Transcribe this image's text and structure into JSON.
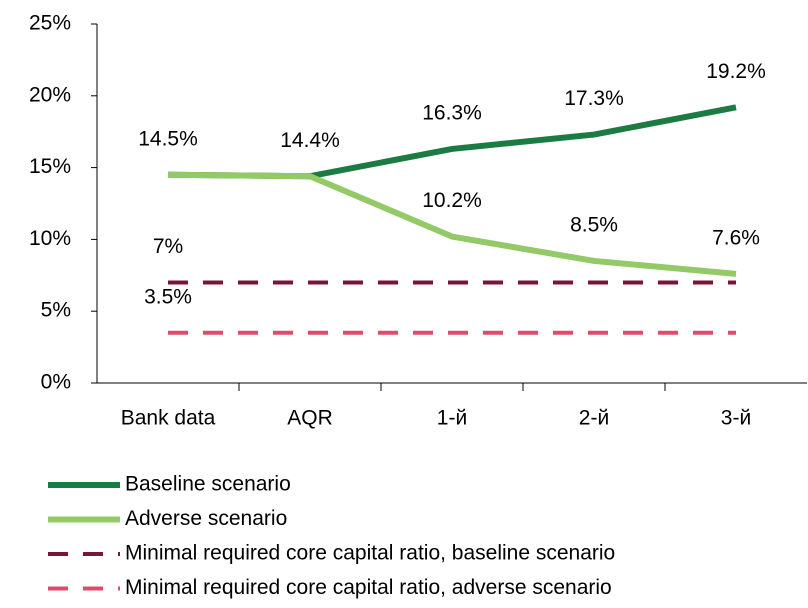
{
  "chart_data": {
    "type": "line",
    "categories": [
      "Bank data",
      "AQR",
      "1-й",
      "2-й",
      "3-й"
    ],
    "series": [
      {
        "name": "Baseline scenario",
        "color": "#1b7b43",
        "dash": false,
        "values": [
          14.5,
          14.4,
          16.3,
          17.3,
          19.2
        ],
        "value_labels": [
          "14.5%",
          "14.4%",
          "16.3%",
          "17.3%",
          "19.2%"
        ]
      },
      {
        "name": "Adverse scenario",
        "color": "#93c966",
        "dash": false,
        "values": [
          14.5,
          14.4,
          10.2,
          8.5,
          7.6
        ],
        "value_labels": [
          null,
          null,
          "10.2%",
          "8.5%",
          "7.6%"
        ]
      },
      {
        "name": "Minimal required core capital ratio, baseline scenario",
        "color": "#7b1438",
        "dash": true,
        "values": [
          7,
          7,
          7,
          7,
          7
        ],
        "value_labels": [
          "7%",
          null,
          null,
          null,
          null
        ]
      },
      {
        "name": "Minimal required core capital ratio, adverse scenario",
        "color": "#d94f6b",
        "dash": true,
        "values": [
          3.5,
          3.5,
          3.5,
          3.5,
          3.5
        ],
        "value_labels": [
          "3.5%",
          null,
          null,
          null,
          null
        ]
      }
    ],
    "ylim": [
      0,
      25
    ],
    "yticks": [
      {
        "value": 0,
        "label": "0%"
      },
      {
        "value": 5,
        "label": "5%"
      },
      {
        "value": 10,
        "label": "10%"
      },
      {
        "value": 15,
        "label": "15%"
      },
      {
        "value": 20,
        "label": "20%"
      },
      {
        "value": 25,
        "label": "25%"
      }
    ],
    "grid": false,
    "legend": "bottom"
  }
}
